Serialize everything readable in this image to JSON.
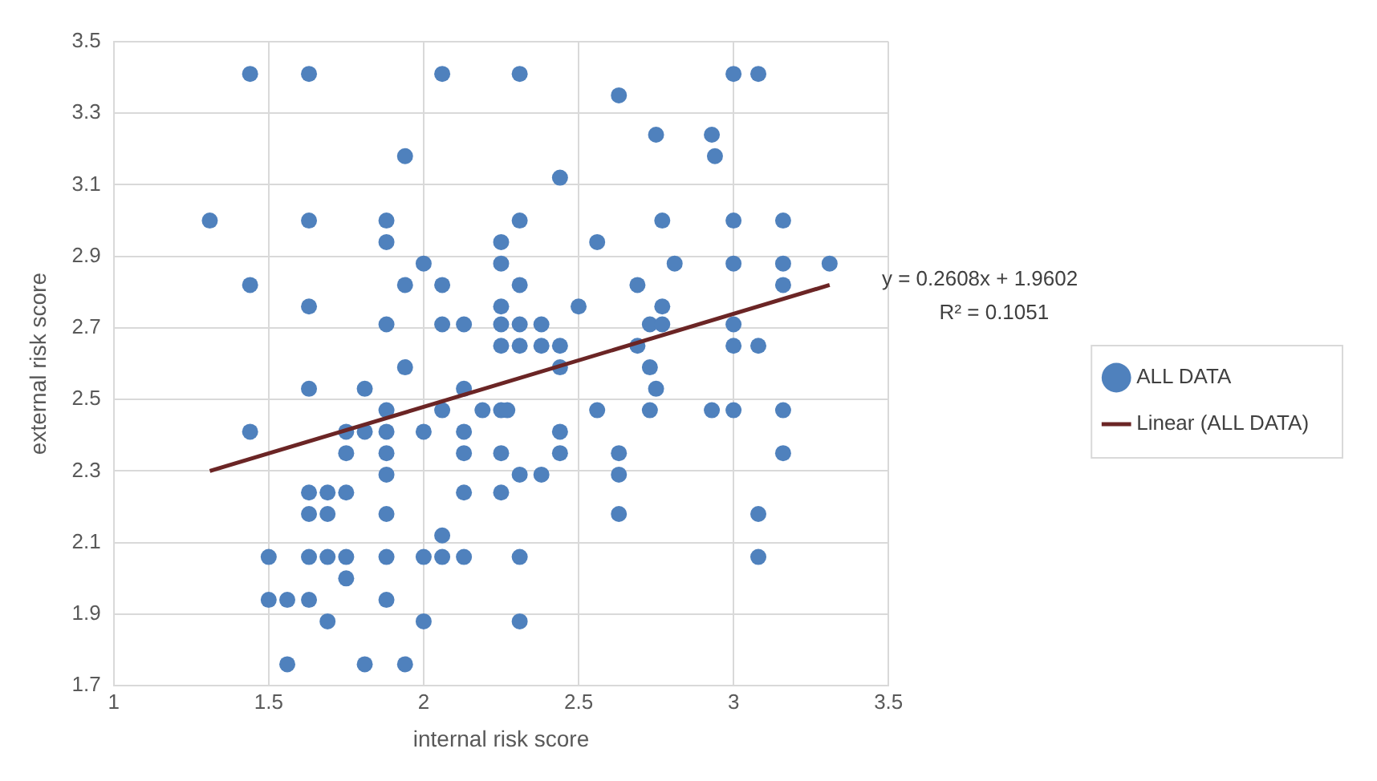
{
  "chart_data": {
    "type": "scatter",
    "xlabel": "internal risk score",
    "ylabel": "external risk score",
    "xlim": [
      1,
      3.5
    ],
    "xticks": [
      1,
      1.5,
      2,
      2.5,
      3,
      3.5
    ],
    "ylim": [
      1.7,
      3.5
    ],
    "yticks": [
      1.7,
      1.9,
      2.1,
      2.3,
      2.5,
      2.7,
      2.9,
      3.1,
      3.3,
      3.5
    ],
    "grid": true,
    "legend": "right",
    "marker": "circle",
    "annotations": [
      "y = 0.2608x + 1.9602",
      "R² = 0.1051"
    ],
    "series": [
      {
        "name": "ALL DATA",
        "color": "#4f81bd",
        "x": [
          1.44,
          1.63,
          2.06,
          2.31,
          3.0,
          3.08,
          2.63,
          2.75,
          2.93,
          1.94,
          2.94,
          2.44,
          1.31,
          1.63,
          1.88,
          2.31,
          2.77,
          3.0,
          3.16,
          1.88,
          2.25,
          2.56,
          2.0,
          2.25,
          2.81,
          3.0,
          3.16,
          3.31,
          1.44,
          1.94,
          2.06,
          2.31,
          2.69,
          3.16,
          1.63,
          2.25,
          2.5,
          2.77,
          1.88,
          2.06,
          2.13,
          2.25,
          2.31,
          2.38,
          2.73,
          2.77,
          3.0,
          2.25,
          2.31,
          2.38,
          2.44,
          2.69,
          3.0,
          3.08,
          1.94,
          2.44,
          2.73,
          1.63,
          1.81,
          2.13,
          2.75,
          1.88,
          2.06,
          2.19,
          2.25,
          2.27,
          2.56,
          2.73,
          2.93,
          3.0,
          3.16,
          1.44,
          1.75,
          1.81,
          1.88,
          2.0,
          2.13,
          2.44,
          1.75,
          1.88,
          2.13,
          2.25,
          2.44,
          2.63,
          3.16,
          1.88,
          2.31,
          2.38,
          2.63,
          1.63,
          1.69,
          1.75,
          2.13,
          2.25,
          1.63,
          1.69,
          1.88,
          2.63,
          3.08,
          2.06,
          1.5,
          1.63,
          1.69,
          1.75,
          1.88,
          2.0,
          2.06,
          2.13,
          2.31,
          3.08,
          1.75,
          1.5,
          1.56,
          1.63,
          1.88,
          1.69,
          2.0,
          2.31,
          1.56,
          1.81,
          1.94
        ],
        "values": [
          3.41,
          3.41,
          3.41,
          3.41,
          3.41,
          3.41,
          3.35,
          3.24,
          3.24,
          3.18,
          3.18,
          3.12,
          3.0,
          3.0,
          3.0,
          3.0,
          3.0,
          3.0,
          3.0,
          2.94,
          2.94,
          2.94,
          2.88,
          2.88,
          2.88,
          2.88,
          2.88,
          2.88,
          2.82,
          2.82,
          2.82,
          2.82,
          2.82,
          2.82,
          2.76,
          2.76,
          2.76,
          2.76,
          2.71,
          2.71,
          2.71,
          2.71,
          2.71,
          2.71,
          2.71,
          2.71,
          2.71,
          2.65,
          2.65,
          2.65,
          2.65,
          2.65,
          2.65,
          2.65,
          2.59,
          2.59,
          2.59,
          2.53,
          2.53,
          2.53,
          2.53,
          2.47,
          2.47,
          2.47,
          2.47,
          2.47,
          2.47,
          2.47,
          2.47,
          2.47,
          2.47,
          2.41,
          2.41,
          2.41,
          2.41,
          2.41,
          2.41,
          2.41,
          2.35,
          2.35,
          2.35,
          2.35,
          2.35,
          2.35,
          2.35,
          2.29,
          2.29,
          2.29,
          2.29,
          2.24,
          2.24,
          2.24,
          2.24,
          2.24,
          2.18,
          2.18,
          2.18,
          2.18,
          2.18,
          2.12,
          2.06,
          2.06,
          2.06,
          2.06,
          2.06,
          2.06,
          2.06,
          2.06,
          2.06,
          2.06,
          2.0,
          1.94,
          1.94,
          1.94,
          1.94,
          1.88,
          1.88,
          1.88,
          1.76,
          1.76,
          1.76
        ]
      },
      {
        "name": "Linear (ALL DATA)",
        "type": "line",
        "marker": "none",
        "color": "#6b2525",
        "x": [
          1.31,
          3.31
        ],
        "values": [
          2.3,
          2.82
        ]
      }
    ]
  }
}
